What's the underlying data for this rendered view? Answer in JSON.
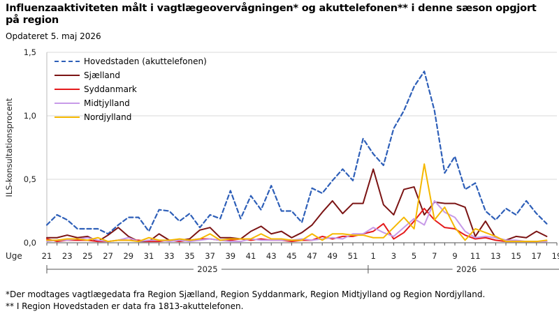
{
  "title": "Influenzaaktiviteten målt i vagtlægeovervågningen* og akuttelefonen** i denne sæson opgjort på region",
  "updated": "Opdateret 5. maj 2026",
  "footnotes": [
    "*Der modtages vagtlægedata fra Region Sjælland, Region Syddanmark, Region Midtjylland og Region Nordjylland.",
    "** I Region Hovedstaden er data fra 1813-akuttelefonen."
  ],
  "chart_data": {
    "type": "line",
    "ylabel": "ILS-konsultationsprocent",
    "xlabel_prefix": "Uge",
    "ylim": [
      0,
      1.5
    ],
    "yticks": [
      "0,0",
      "0,5",
      "1,0",
      "1,5"
    ],
    "x": [
      "21",
      "22",
      "23",
      "24",
      "25",
      "26",
      "27",
      "28",
      "29",
      "30",
      "31",
      "32",
      "33",
      "34",
      "35",
      "36",
      "37",
      "38",
      "39",
      "40",
      "41",
      "42",
      "43",
      "44",
      "45",
      "46",
      "47",
      "48",
      "49",
      "50",
      "51",
      "52",
      "1",
      "2",
      "3",
      "4",
      "5",
      "6",
      "7",
      "8",
      "9",
      "10",
      "11",
      "12",
      "13",
      "14",
      "15",
      "16",
      "17",
      "18"
    ],
    "xtick_labels": [
      "21",
      "23",
      "25",
      "27",
      "29",
      "31",
      "33",
      "35",
      "37",
      "39",
      "41",
      "43",
      "45",
      "47",
      "49",
      "51",
      "1",
      "3",
      "5",
      "7",
      "9",
      "11",
      "13",
      "15",
      "17",
      "19"
    ],
    "year_groups": [
      {
        "label": "2025",
        "from": "21",
        "to": "52"
      },
      {
        "label": "2026",
        "from": "1",
        "to": "19"
      }
    ],
    "series": [
      {
        "name": "Hovedstaden (akuttelefonen)",
        "color": "#2e5fb8",
        "dash": true,
        "values": [
          0.14,
          0.22,
          0.18,
          0.11,
          0.11,
          0.11,
          0.07,
          0.14,
          0.2,
          0.2,
          0.09,
          0.26,
          0.25,
          0.17,
          0.23,
          0.12,
          0.22,
          0.19,
          0.41,
          0.19,
          0.37,
          0.26,
          0.45,
          0.25,
          0.25,
          0.16,
          0.43,
          0.39,
          0.49,
          0.58,
          0.49,
          0.82,
          0.7,
          0.61,
          0.9,
          1.04,
          1.23,
          1.35,
          1.04,
          0.55,
          0.68,
          0.42,
          0.47,
          0.25,
          0.18,
          0.27,
          0.22,
          0.33,
          0.23,
          0.15
        ]
      },
      {
        "name": "Sjælland",
        "color": "#7b1414",
        "dash": false,
        "values": [
          0.04,
          0.04,
          0.06,
          0.04,
          0.05,
          0.01,
          0.06,
          0.12,
          0.05,
          0.01,
          0.01,
          0.07,
          0.02,
          0.02,
          0.03,
          0.1,
          0.12,
          0.04,
          0.04,
          0.03,
          0.09,
          0.13,
          0.07,
          0.09,
          0.04,
          0.08,
          0.14,
          0.24,
          0.33,
          0.23,
          0.31,
          0.31,
          0.58,
          0.3,
          0.22,
          0.42,
          0.44,
          0.22,
          0.32,
          0.31,
          0.31,
          0.28,
          0.05,
          0.17,
          0.04,
          0.02,
          0.05,
          0.04,
          0.09,
          0.05
        ]
      },
      {
        "name": "Syddanmark",
        "color": "#e41a1c",
        "dash": false,
        "values": [
          0.03,
          0.01,
          0.02,
          0.02,
          0.02,
          0.01,
          0.01,
          0.02,
          0.02,
          0.02,
          0.01,
          0.01,
          0.02,
          0.01,
          0.02,
          0.03,
          0.03,
          0.02,
          0.02,
          0.03,
          0.02,
          0.03,
          0.02,
          0.02,
          0.01,
          0.02,
          0.02,
          0.05,
          0.03,
          0.05,
          0.05,
          0.07,
          0.09,
          0.15,
          0.03,
          0.08,
          0.17,
          0.27,
          0.18,
          0.12,
          0.11,
          0.06,
          0.03,
          0.04,
          0.02,
          0.01,
          0.01,
          0.01,
          0.01,
          0.01
        ]
      },
      {
        "name": "Midtjylland",
        "color": "#c79ae8",
        "dash": false,
        "values": [
          0.01,
          0.02,
          0.02,
          0.03,
          0.04,
          0.02,
          0.01,
          0.02,
          0.04,
          0.01,
          0.02,
          0.02,
          0.01,
          0.02,
          0.01,
          0.02,
          0.03,
          0.02,
          0.01,
          0.01,
          0.03,
          0.02,
          0.02,
          0.02,
          0.02,
          0.03,
          0.02,
          0.03,
          0.04,
          0.03,
          0.07,
          0.07,
          0.12,
          0.08,
          0.05,
          0.12,
          0.19,
          0.14,
          0.33,
          0.24,
          0.2,
          0.09,
          0.04,
          0.05,
          0.04,
          0.02,
          0.02,
          0.01,
          0.01,
          0.01
        ]
      },
      {
        "name": "Nordjylland",
        "color": "#f5b800",
        "dash": false,
        "values": [
          0.02,
          0.02,
          0.03,
          0.03,
          0.02,
          0.04,
          0.01,
          0.02,
          0.02,
          0.01,
          0.04,
          0.02,
          0.02,
          0.03,
          0.02,
          0.03,
          0.07,
          0.02,
          0.03,
          0.03,
          0.03,
          0.07,
          0.03,
          0.03,
          0.02,
          0.02,
          0.07,
          0.02,
          0.07,
          0.07,
          0.06,
          0.06,
          0.04,
          0.04,
          0.12,
          0.2,
          0.11,
          0.62,
          0.18,
          0.28,
          0.12,
          0.02,
          0.11,
          0.08,
          0.05,
          0.01,
          0.01,
          0.01,
          0.01,
          0.02
        ]
      }
    ]
  }
}
